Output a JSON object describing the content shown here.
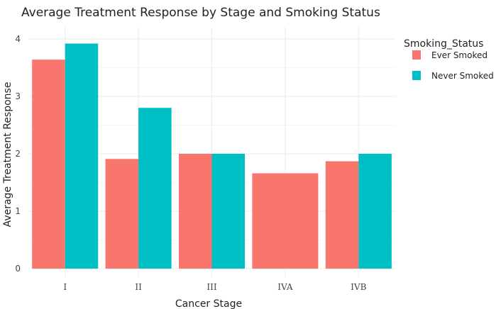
{
  "chart_data": {
    "type": "bar",
    "title": "Average Treatment Response by Stage and Smoking Status",
    "xlabel": "Cancer Stage",
    "ylabel": "Average Treatment Response",
    "categories": [
      "I",
      "II",
      "III",
      "IVA",
      "IVB"
    ],
    "ylim": [
      0,
      4.2
    ],
    "yticks": [
      0,
      1,
      2,
      3,
      4
    ],
    "grid": true,
    "legend": {
      "title": "Smoking_Status",
      "placement": "right"
    },
    "series": [
      {
        "name": "Ever Smoked",
        "color": "#F8766D",
        "values": [
          3.64,
          1.91,
          2.0,
          1.66,
          1.87
        ]
      },
      {
        "name": "Never Smoked",
        "color": "#00BFC4",
        "values": [
          3.92,
          2.8,
          2.0,
          null,
          2.0
        ]
      }
    ]
  }
}
